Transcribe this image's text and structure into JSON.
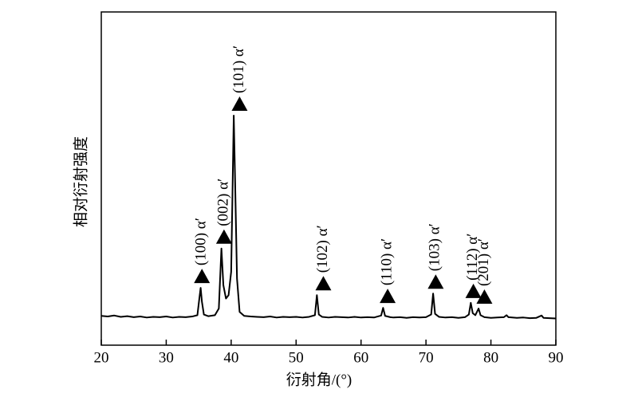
{
  "chart_data": {
    "type": "line",
    "x_label": "衍射角/(°)",
    "y_label": "相对衍射强度",
    "xlim": [
      20,
      90
    ],
    "xticks": [
      20,
      30,
      40,
      50,
      60,
      70,
      80,
      90
    ],
    "ylim": [
      0,
      100
    ],
    "color": "#000000",
    "x": [
      20,
      21,
      22,
      23,
      24,
      25,
      26,
      27,
      28,
      29,
      30,
      31,
      32,
      33,
      34,
      34.8,
      35.1,
      35.3,
      35.5,
      35.8,
      36.5,
      37.5,
      38.1,
      38.5,
      38.8,
      39.2,
      39.6,
      40.0,
      40.2,
      40.4,
      40.6,
      40.9,
      41.3,
      42,
      43,
      44,
      45,
      46,
      47,
      48,
      49,
      50,
      51,
      52,
      52.9,
      53.2,
      53.5,
      54,
      55,
      56,
      57,
      58,
      59,
      60,
      61,
      62,
      63.1,
      63.4,
      63.7,
      64.5,
      65,
      66,
      67,
      68,
      69,
      70,
      70.8,
      71.1,
      71.4,
      72,
      73,
      74,
      75,
      76,
      76.6,
      76.9,
      77.2,
      77.6,
      78.1,
      78.4,
      79,
      80,
      81,
      82,
      82.4,
      82.7,
      84,
      85,
      86,
      87,
      87.8,
      88.1,
      89,
      90
    ],
    "values": [
      8.8,
      8.6,
      8.9,
      8.5,
      8.7,
      8.4,
      8.6,
      8.3,
      8.5,
      8.4,
      8.6,
      8.3,
      8.5,
      8.4,
      8.6,
      9.0,
      14,
      17.2,
      13,
      9.2,
      8.7,
      9.0,
      11,
      29,
      18,
      14,
      15,
      22,
      45,
      68.9,
      50,
      20,
      10,
      8.8,
      8.6,
      8.5,
      8.4,
      8.6,
      8.3,
      8.5,
      8.4,
      8.5,
      8.3,
      8.5,
      9.0,
      15,
      9.2,
      8.5,
      8.3,
      8.5,
      8.4,
      8.3,
      8.5,
      8.3,
      8.4,
      8.3,
      8.9,
      11.2,
      8.8,
      8.4,
      8.3,
      8.4,
      8.2,
      8.4,
      8.3,
      8.4,
      9.2,
      15.5,
      9.4,
      8.5,
      8.3,
      8.4,
      8.2,
      8.4,
      9.2,
      12.7,
      9.6,
      9.0,
      11,
      9.0,
      8.4,
      8.2,
      8.3,
      8.4,
      9.0,
      8.4,
      8.2,
      8.3,
      8.1,
      8.2,
      8.9,
      8.2,
      8.1,
      8.0
    ],
    "annotations": [
      {
        "text": "(100) α′",
        "x": 35.5
      },
      {
        "text": "(002) α′",
        "x": 38.9
      },
      {
        "text": "(101) α′",
        "x": 41.3
      },
      {
        "text": "(102) α′",
        "x": 54.2
      },
      {
        "text": "(110) α′",
        "x": 64.1
      },
      {
        "text": "(103) α′",
        "x": 71.5
      },
      {
        "text": "(112) α′",
        "x": 77.3
      },
      {
        "text": "(201) α′",
        "x": 79.0
      }
    ]
  }
}
